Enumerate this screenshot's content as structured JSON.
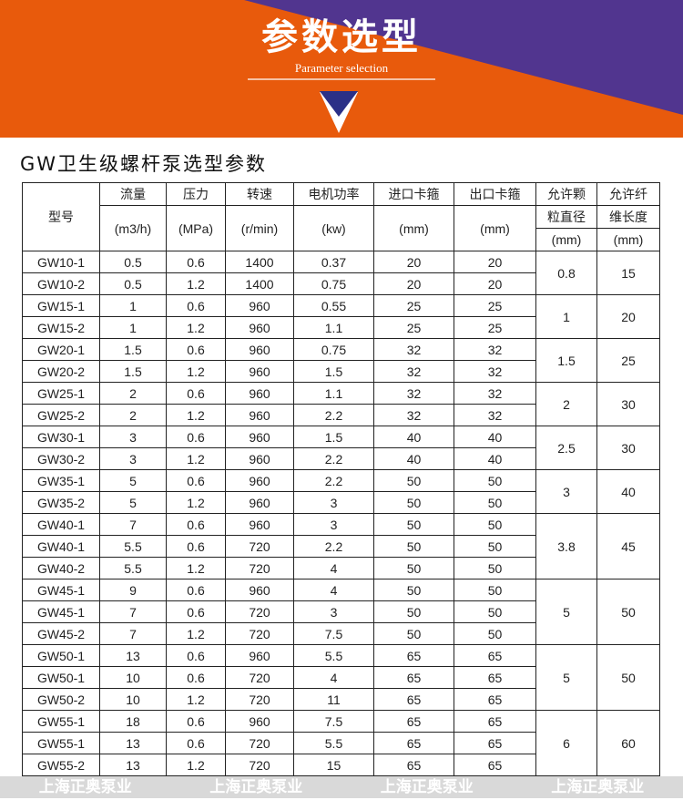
{
  "banner": {
    "title": "参数选型",
    "subtitle": "Parameter selection",
    "colors": {
      "orange": "#E85A0C",
      "purple": "#51358F",
      "arrow": "#2B3087"
    }
  },
  "doc_title": "GW卫生级螺杆泵选型参数",
  "table": {
    "header": {
      "model": "型号",
      "cols": [
        {
          "label": "流量",
          "unit": "(m3/h)"
        },
        {
          "label": "压力",
          "unit": "(MPa)"
        },
        {
          "label": "转速",
          "unit": "(r/min)"
        },
        {
          "label": "电机功率",
          "unit": "(kw)"
        },
        {
          "label": "进口卡箍",
          "unit": "(mm)"
        },
        {
          "label": "出口卡箍",
          "unit": "(mm)"
        }
      ],
      "particle": {
        "line1": "允许颗",
        "line2": "粒直径",
        "unit": "(mm)"
      },
      "fiber": {
        "line1": "允许纤",
        "line2": "维长度",
        "unit": "(mm)"
      }
    },
    "groups": [
      {
        "particle": "0.8",
        "fiber": "15",
        "rows": [
          [
            "GW10-1",
            "0.5",
            "0.6",
            "1400",
            "0.37",
            "20",
            "20"
          ],
          [
            "GW10-2",
            "0.5",
            "1.2",
            "1400",
            "0.75",
            "20",
            "20"
          ]
        ]
      },
      {
        "particle": "1",
        "fiber": "20",
        "rows": [
          [
            "GW15-1",
            "1",
            "0.6",
            "960",
            "0.55",
            "25",
            "25"
          ],
          [
            "GW15-2",
            "1",
            "1.2",
            "960",
            "1.1",
            "25",
            "25"
          ]
        ]
      },
      {
        "particle": "1.5",
        "fiber": "25",
        "rows": [
          [
            "GW20-1",
            "1.5",
            "0.6",
            "960",
            "0.75",
            "32",
            "32"
          ],
          [
            "GW20-2",
            "1.5",
            "1.2",
            "960",
            "1.5",
            "32",
            "32"
          ]
        ]
      },
      {
        "particle": "2",
        "fiber": "30",
        "rows": [
          [
            "GW25-1",
            "2",
            "0.6",
            "960",
            "1.1",
            "32",
            "32"
          ],
          [
            "GW25-2",
            "2",
            "1.2",
            "960",
            "2.2",
            "32",
            "32"
          ]
        ]
      },
      {
        "particle": "2.5",
        "fiber": "30",
        "rows": [
          [
            "GW30-1",
            "3",
            "0.6",
            "960",
            "1.5",
            "40",
            "40"
          ],
          [
            "GW30-2",
            "3",
            "1.2",
            "960",
            "2.2",
            "40",
            "40"
          ]
        ]
      },
      {
        "particle": "3",
        "fiber": "40",
        "rows": [
          [
            "GW35-1",
            "5",
            "0.6",
            "960",
            "2.2",
            "50",
            "50"
          ],
          [
            "GW35-2",
            "5",
            "1.2",
            "960",
            "3",
            "50",
            "50"
          ]
        ]
      },
      {
        "particle": "3.8",
        "fiber": "45",
        "rows": [
          [
            "GW40-1",
            "7",
            "0.6",
            "960",
            "3",
            "50",
            "50"
          ],
          [
            "GW40-1",
            "5.5",
            "0.6",
            "720",
            "2.2",
            "50",
            "50"
          ],
          [
            "GW40-2",
            "5.5",
            "1.2",
            "720",
            "4",
            "50",
            "50"
          ]
        ]
      },
      {
        "particle": "5",
        "fiber": "50",
        "rows": [
          [
            "GW45-1",
            "9",
            "0.6",
            "960",
            "4",
            "50",
            "50"
          ],
          [
            "GW45-1",
            "7",
            "0.6",
            "720",
            "3",
            "50",
            "50"
          ],
          [
            "GW45-2",
            "7",
            "1.2",
            "720",
            "7.5",
            "50",
            "50"
          ]
        ]
      },
      {
        "particle": "5",
        "fiber": "50",
        "rows": [
          [
            "GW50-1",
            "13",
            "0.6",
            "960",
            "5.5",
            "65",
            "65"
          ],
          [
            "GW50-1",
            "10",
            "0.6",
            "720",
            "4",
            "65",
            "65"
          ],
          [
            "GW50-2",
            "10",
            "1.2",
            "720",
            "11",
            "65",
            "65"
          ]
        ]
      },
      {
        "particle": "6",
        "fiber": "60",
        "rows": [
          [
            "GW55-1",
            "18",
            "0.6",
            "960",
            "7.5",
            "65",
            "65"
          ],
          [
            "GW55-1",
            "13",
            "0.6",
            "720",
            "5.5",
            "65",
            "65"
          ],
          [
            "GW55-2",
            "13",
            "1.2",
            "720",
            "15",
            "65",
            "65"
          ]
        ]
      }
    ]
  },
  "watermark": [
    "上海正奥泵业",
    "上海正奥泵业",
    "上海正奥泵业",
    "上海正奥泵业"
  ]
}
